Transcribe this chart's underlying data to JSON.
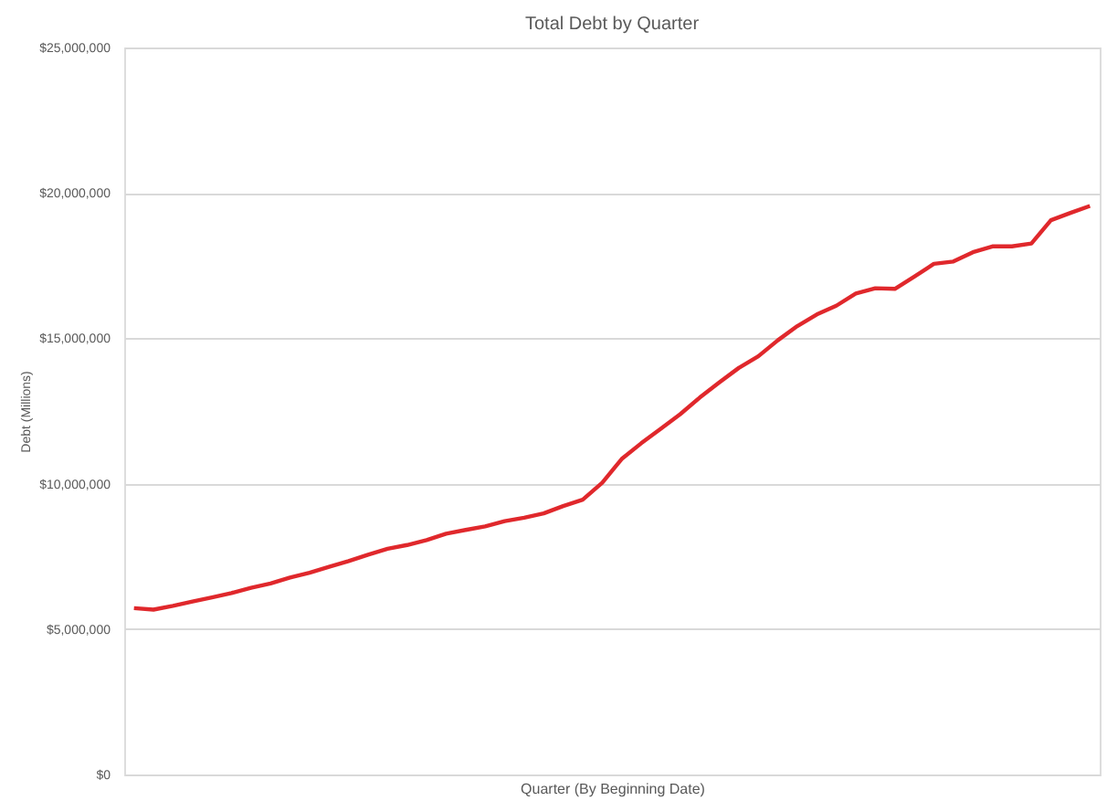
{
  "chart_data": {
    "type": "line",
    "title": "Total Debt by Quarter",
    "xlabel": "Quarter (By Beginning Date)",
    "ylabel": "Debt (Millions)",
    "categories": [
      null,
      null,
      null,
      null,
      null,
      null,
      null,
      null,
      null,
      null,
      null,
      null,
      null,
      null,
      null,
      null,
      null,
      null,
      null,
      null,
      null,
      null,
      null,
      null,
      null,
      null,
      null,
      null,
      null,
      null,
      null,
      null,
      null,
      null,
      null,
      null,
      null,
      null,
      null,
      null,
      null,
      null,
      null,
      null,
      null,
      null,
      null,
      null,
      null,
      null
    ],
    "series": [
      {
        "color": "#e0282c",
        "values": [
          5720000,
          5670000,
          5800000,
          5950000,
          6090000,
          6240000,
          6420000,
          6570000,
          6770000,
          6940000,
          7140000,
          7340000,
          7560000,
          7760000,
          7890000,
          8060000,
          8280000,
          8410000,
          8530000,
          8710000,
          8830000,
          8980000,
          9230000,
          9450000,
          10030000,
          10850000,
          11390000,
          11890000,
          12390000,
          12960000,
          13480000,
          13980000,
          14380000,
          14930000,
          15420000,
          15820000,
          16120000,
          16540000,
          16720000,
          16700000,
          17120000,
          17560000,
          17640000,
          17960000,
          18160000,
          18160000,
          18260000,
          19060000,
          19310000,
          19550000
        ]
      }
    ],
    "ylim": [
      0,
      25000000
    ],
    "yticks": [
      {
        "value": 0,
        "label": "$0"
      },
      {
        "value": 5000000,
        "label": "$5,000,000"
      },
      {
        "value": 10000000,
        "label": "$10,000,000"
      },
      {
        "value": 15000000,
        "label": "$15,000,000"
      },
      {
        "value": 20000000,
        "label": "$20,000,000"
      },
      {
        "value": 25000000,
        "label": "$25,000,000"
      }
    ],
    "grid": "y",
    "marker": "none",
    "line_style": "solid"
  }
}
